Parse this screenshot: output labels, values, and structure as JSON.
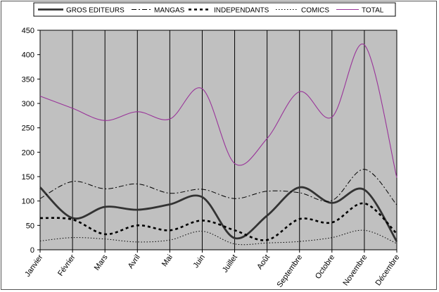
{
  "chart_data": {
    "type": "line",
    "categories": [
      "Janvier",
      "Février",
      "Mars",
      "Avril",
      "Mai",
      "Juin",
      "Juillet",
      "Août",
      "Septembre",
      "Octobre",
      "Novembre",
      "Décembre"
    ],
    "ylim": [
      0,
      450
    ],
    "yticks": [
      0,
      50,
      100,
      150,
      200,
      250,
      300,
      350,
      400,
      450
    ],
    "grid": false,
    "plot_background": "#c0c0c0",
    "legend_position": "top",
    "series": [
      {
        "name": "GROS EDITEURS",
        "color": "#333333",
        "style": "solid-thick",
        "values": [
          128,
          65,
          88,
          82,
          93,
          108,
          24,
          70,
          128,
          96,
          123,
          17
        ]
      },
      {
        "name": "MANGAS",
        "color": "#000000",
        "style": "dash-dot",
        "values": [
          105,
          140,
          125,
          135,
          116,
          124,
          105,
          120,
          117,
          101,
          165,
          92
        ]
      },
      {
        "name": "INDEPENDANTS",
        "color": "#000000",
        "style": "dashed-thick",
        "values": [
          65,
          62,
          32,
          50,
          40,
          60,
          40,
          20,
          63,
          56,
          95,
          33
        ]
      },
      {
        "name": "COMICS",
        "color": "#000000",
        "style": "dotted",
        "values": [
          18,
          25,
          22,
          16,
          20,
          38,
          12,
          14,
          17,
          25,
          40,
          13
        ]
      },
      {
        "name": "TOTAL",
        "color": "#993399",
        "style": "solid",
        "values": [
          315,
          290,
          265,
          283,
          268,
          330,
          177,
          228,
          324,
          272,
          420,
          148
        ]
      }
    ]
  }
}
